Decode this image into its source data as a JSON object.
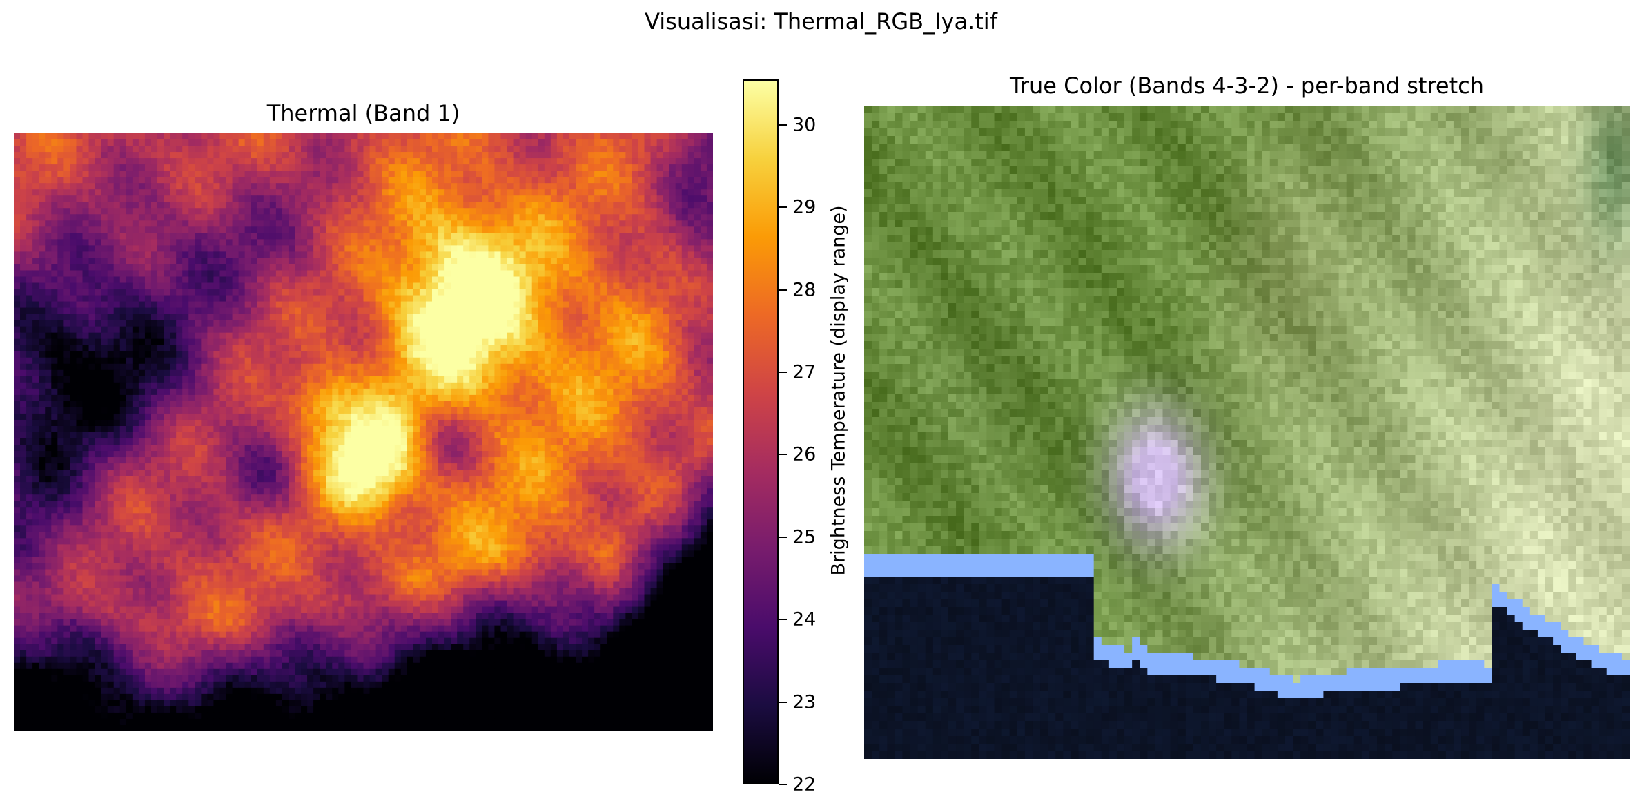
{
  "figure": {
    "suptitle": "Visualisasi: Thermal_RGB_Iya.tif"
  },
  "thermal_panel": {
    "title": "Thermal (Band 1)",
    "colormap": "inferno",
    "colormap_stops": [
      "#000004",
      "#1b0c41",
      "#4a0c6b",
      "#781c6d",
      "#a52c60",
      "#cf4446",
      "#ed6925",
      "#fb9b06",
      "#f7d13d",
      "#fcffa4"
    ]
  },
  "colorbar": {
    "label": "Brightness Temperature (display range)",
    "range": [
      22,
      30.55
    ],
    "ticks": [
      "22",
      "23",
      "24",
      "25",
      "26",
      "27",
      "28",
      "29",
      "30"
    ]
  },
  "rgb_panel": {
    "title": "True Color (Bands 4-3-2) - per-band stretch",
    "palette": {
      "sea": "#0a1020",
      "coast": "#8ab4ff",
      "forest": "#6a8f3a",
      "dry_land": "#c9d6a6",
      "crater": "#c4b3e6"
    }
  },
  "chart_data": [
    {
      "type": "heatmap",
      "title": "Thermal (Band 1)",
      "xlabel": "",
      "ylabel": "",
      "colorbar_label": "Brightness Temperature (display range)",
      "vmin": 22,
      "vmax": 30.55,
      "colorbar_ticks": [
        22,
        23,
        24,
        25,
        26,
        27,
        28,
        29,
        30
      ],
      "description_values": {
        "hot_core_max": 30.5,
        "cold_northwest_min": 22.2,
        "southern_sea_min": 22.0
      }
    },
    {
      "type": "heatmap",
      "title": "True Color (Bands 4-3-2) - per-band stretch",
      "xlabel": "",
      "ylabel": ""
    }
  ]
}
